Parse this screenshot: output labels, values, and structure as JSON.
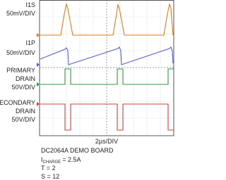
{
  "traces": [
    {
      "name_lines": [
        "I1S"
      ],
      "scale": "50mV/DIV"
    },
    {
      "name_lines": [
        "I1P"
      ],
      "scale": "50mV/DIV"
    },
    {
      "name_lines": [
        "PRIMARY",
        "DRAIN"
      ],
      "scale": "50V/DIV"
    },
    {
      "name_lines": [
        "SECONDARY",
        "DRAIN"
      ],
      "scale": "50V/DIV"
    }
  ],
  "timebase": "2µs/DIV",
  "caption": {
    "board": "DC2064A DEMO BOARD",
    "charge": {
      "symbol": "I",
      "subscript": "CHARGE",
      "value": "= 2.5A"
    },
    "t": "T = 2",
    "s": "S = 12"
  }
}
